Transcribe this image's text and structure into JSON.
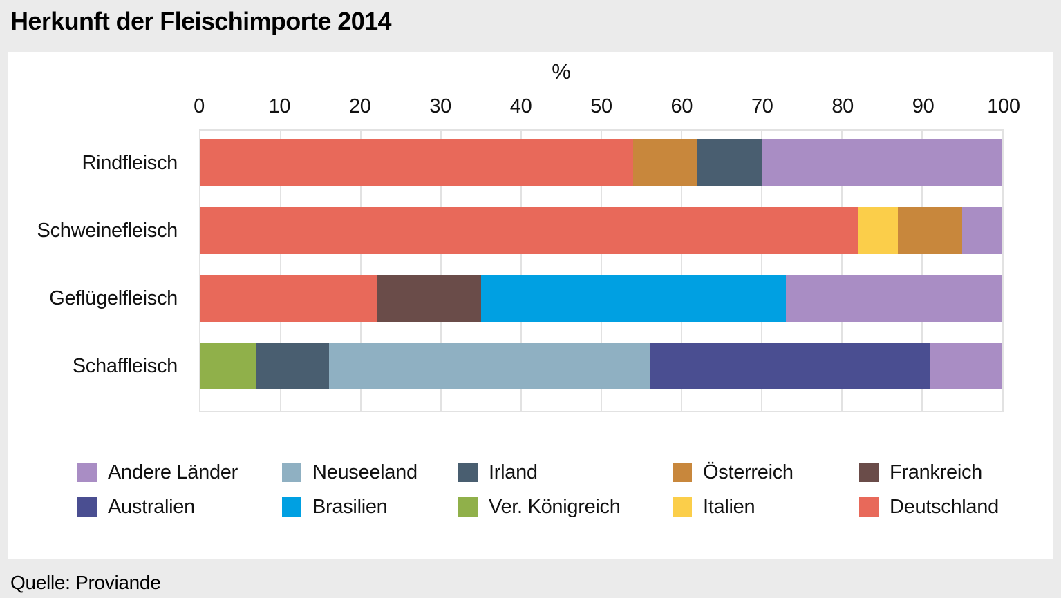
{
  "title": "Herkunft der Fleischimporte 2014",
  "source": "Quelle: Proviande",
  "chart_data": {
    "type": "bar",
    "orientation": "horizontal",
    "stacked": true,
    "unit": "%",
    "title": "Herkunft der Fleischimporte 2014",
    "xlabel": "%",
    "xlim": [
      0,
      100
    ],
    "xticks": [
      0,
      10,
      20,
      30,
      40,
      50,
      60,
      70,
      80,
      90,
      100
    ],
    "grid": true,
    "categories": [
      "Rindfleisch",
      "Schweinefleisch",
      "Geflügelfleisch",
      "Schaffleisch"
    ],
    "bars": [
      {
        "category": "Rindfleisch",
        "segments": [
          {
            "label": "Deutschland",
            "value": 54
          },
          {
            "label": "Österreich",
            "value": 8
          },
          {
            "label": "Irland",
            "value": 8
          },
          {
            "label": "Andere Länder",
            "value": 30
          }
        ]
      },
      {
        "category": "Schweinefleisch",
        "segments": [
          {
            "label": "Deutschland",
            "value": 82
          },
          {
            "label": "Italien",
            "value": 5
          },
          {
            "label": "Österreich",
            "value": 8
          },
          {
            "label": "Andere Länder",
            "value": 5
          }
        ]
      },
      {
        "category": "Geflügelfleisch",
        "segments": [
          {
            "label": "Deutschland",
            "value": 22
          },
          {
            "label": "Frankreich",
            "value": 13
          },
          {
            "label": "Brasilien",
            "value": 38
          },
          {
            "label": "Andere Länder",
            "value": 27
          }
        ]
      },
      {
        "category": "Schaffleisch",
        "segments": [
          {
            "label": "Ver. Königreich",
            "value": 7
          },
          {
            "label": "Irland",
            "value": 9
          },
          {
            "label": "Neuseeland",
            "value": 40
          },
          {
            "label": "Australien",
            "value": 35
          },
          {
            "label": "Andere Länder",
            "value": 9
          }
        ]
      }
    ],
    "legend": {
      "position": "bottom",
      "rows": [
        [
          "Andere Länder",
          "Neuseeland",
          "Irland",
          "Österreich",
          "Frankreich"
        ],
        [
          "Australien",
          "Brasilien",
          "Ver. Königreich",
          "Italien",
          "Deutschland"
        ]
      ]
    },
    "colors": {
      "Andere Länder": "#a98dc4",
      "Neuseeland": "#8fb0c2",
      "Irland": "#495e70",
      "Österreich": "#c8873c",
      "Frankreich": "#6a4c49",
      "Australien": "#4a4e91",
      "Brasilien": "#00a0e2",
      "Ver. Königreich": "#90b04a",
      "Italien": "#fbce4a",
      "Deutschland": "#e8695a"
    },
    "colors_misc": {
      "page_background": "#ebebeb",
      "panel_background": "#ffffff",
      "gridline": "#e2e2e2",
      "text": "#111111"
    }
  }
}
